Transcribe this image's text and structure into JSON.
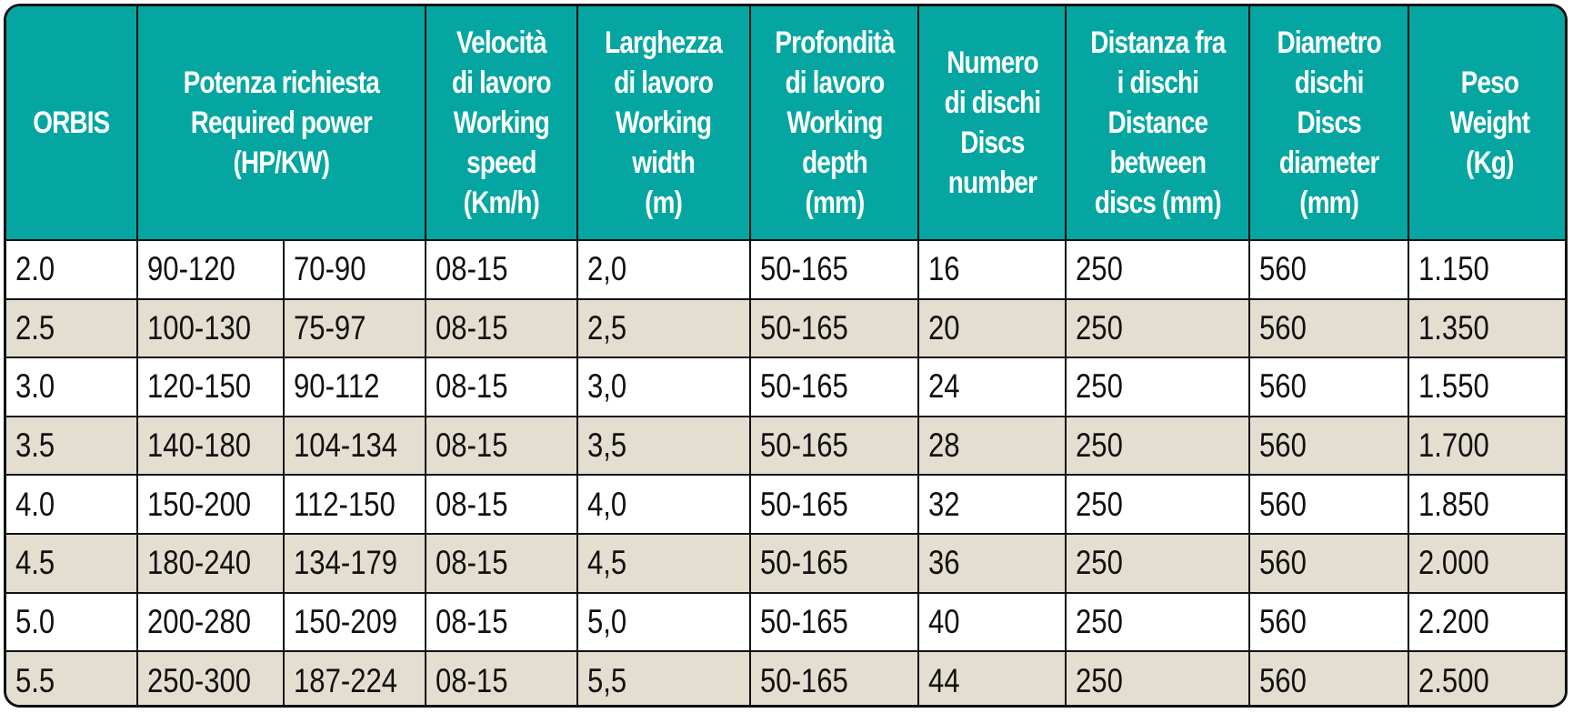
{
  "colors": {
    "header_bg": "#05a6a1",
    "header_text": "#ffffff",
    "stripe": "#e4ded0",
    "border": "#111111"
  },
  "headers": [
    "ORBIS",
    "Potenza richiesta\nRequired power\n(HP/KW)",
    "Velocità\ndi lavoro\nWorking\nspeed\n(Km/h)",
    "Larghezza\ndi lavoro\nWorking\nwidth\n(m)",
    "Profondità\ndi lavoro\nWorking\ndepth\n(mm)",
    "Numero\ndi dischi\nDiscs\nnumber",
    "Distanza fra\ni dischi\nDistance\nbetween\ndiscs (mm)",
    "Diametro\ndischi\nDiscs\ndiameter\n(mm)",
    "Peso\nWeight\n(Kg)"
  ],
  "rows": [
    [
      "2.0",
      "90-120",
      "70-90",
      "08-15",
      "2,0",
      "50-165",
      "16",
      "250",
      "560",
      "1.150"
    ],
    [
      "2.5",
      "100-130",
      "75-97",
      "08-15",
      "2,5",
      "50-165",
      "20",
      "250",
      "560",
      "1.350"
    ],
    [
      "3.0",
      "120-150",
      "90-112",
      "08-15",
      "3,0",
      "50-165",
      "24",
      "250",
      "560",
      "1.550"
    ],
    [
      "3.5",
      "140-180",
      "104-134",
      "08-15",
      "3,5",
      "50-165",
      "28",
      "250",
      "560",
      "1.700"
    ],
    [
      "4.0",
      "150-200",
      "112-150",
      "08-15",
      "4,0",
      "50-165",
      "32",
      "250",
      "560",
      "1.850"
    ],
    [
      "4.5",
      "180-240",
      "134-179",
      "08-15",
      "4,5",
      "50-165",
      "36",
      "250",
      "560",
      "2.000"
    ],
    [
      "5.0",
      "200-280",
      "150-209",
      "08-15",
      "5,0",
      "50-165",
      "40",
      "250",
      "560",
      "2.200"
    ],
    [
      "5.5",
      "250-300",
      "187-224",
      "08-15",
      "5,5",
      "50-165",
      "44",
      "250",
      "560",
      "2.500"
    ]
  ]
}
